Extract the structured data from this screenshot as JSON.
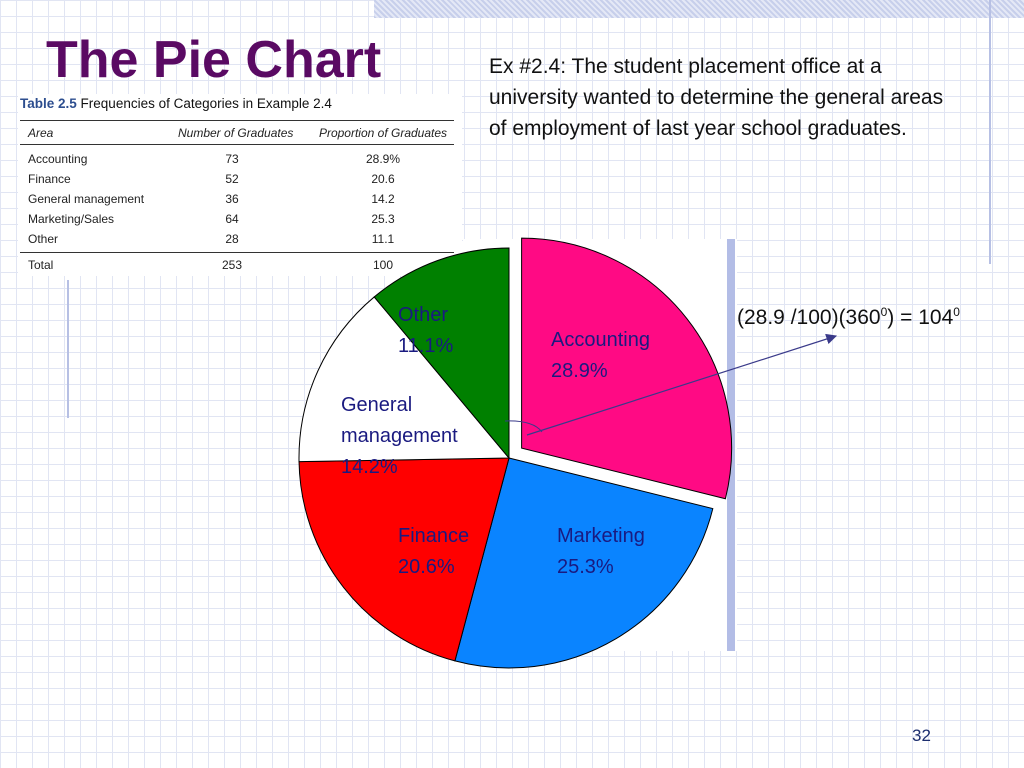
{
  "slide": {
    "title": "The Pie Chart",
    "description": "Ex #2.4:  The student placement office at a university wanted to determine the general areas of employment of last year school graduates.",
    "formula": "(28.9 /100)(360",
    "formula_sup1": "0",
    "formula_mid": ") = 104",
    "formula_sup2": "0",
    "page_number": "32"
  },
  "table": {
    "caption_label": "Table 2.5",
    "caption_text": "Frequencies of Categories in Example 2.4",
    "columns": [
      "Area",
      "Number of Graduates",
      "Proportion of Graduates"
    ],
    "rows": [
      [
        "Accounting",
        "73",
        "28.9%"
      ],
      [
        "Finance",
        "52",
        "20.6"
      ],
      [
        "General management",
        "36",
        "14.2"
      ],
      [
        "Marketing/Sales",
        "64",
        "25.3"
      ],
      [
        "Other",
        "28",
        "11.1"
      ]
    ],
    "total": [
      "Total",
      "253",
      "100"
    ]
  },
  "chart_data": {
    "type": "pie",
    "slices": [
      {
        "category": "Accounting",
        "value": 28.9,
        "label": "28.9%",
        "color": "#ff0a84",
        "text_color": "#1a1a80"
      },
      {
        "category": "Marketing",
        "value": 25.3,
        "label": "25.3%",
        "color": "#0a84ff",
        "text_color": "#1a1a80"
      },
      {
        "category": "Finance",
        "value": 20.6,
        "label": "20.6%",
        "color": "#ff0000",
        "text_color": "#1a1a80"
      },
      {
        "category": "General management",
        "value": 14.2,
        "label": "14.2%",
        "color": "#ffffff",
        "text_color": "#1a1a80"
      },
      {
        "category": "Other",
        "value": 11.1,
        "label": "11.1%",
        "color": "#008000",
        "text_color": "#1a1a80"
      }
    ],
    "start_angle_deg": 0,
    "direction": "clockwise",
    "exploded": [
      "Accounting"
    ]
  }
}
